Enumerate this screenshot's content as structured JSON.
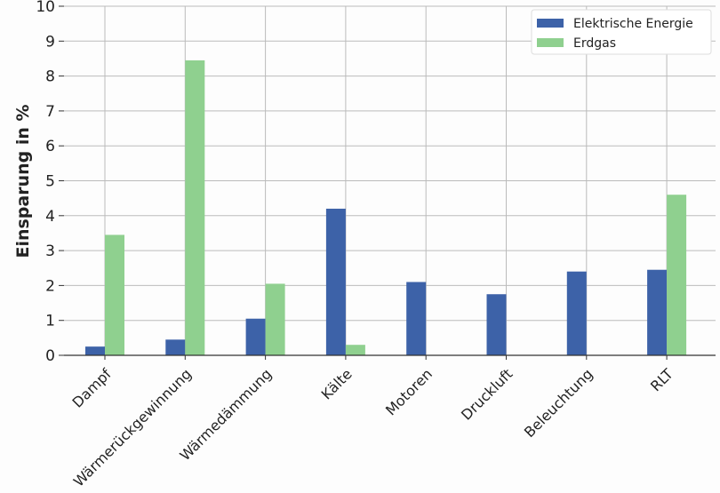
{
  "chart_data": {
    "type": "bar",
    "title": "",
    "xlabel": "",
    "ylabel": "Einsparung in %",
    "ylim": [
      0,
      10
    ],
    "yticks": [
      0,
      1,
      2,
      3,
      4,
      5,
      6,
      7,
      8,
      9,
      10
    ],
    "grid": true,
    "legend_position": "top-right",
    "categories": [
      "Dampf",
      "Wärmerückgewinnung",
      "Wärmedämmung",
      "Kälte",
      "Motoren",
      "Druckluft",
      "Beleuchtung",
      "RLT"
    ],
    "series": [
      {
        "name": "Elektrische Energie",
        "color": "#3d62a8",
        "values": [
          0.25,
          0.45,
          1.05,
          4.2,
          2.1,
          1.75,
          2.4,
          2.45
        ]
      },
      {
        "name": "Erdgas",
        "color": "#8fd08f",
        "values": [
          3.45,
          8.45,
          2.05,
          0.3,
          0,
          0,
          0,
          4.6
        ]
      }
    ]
  }
}
